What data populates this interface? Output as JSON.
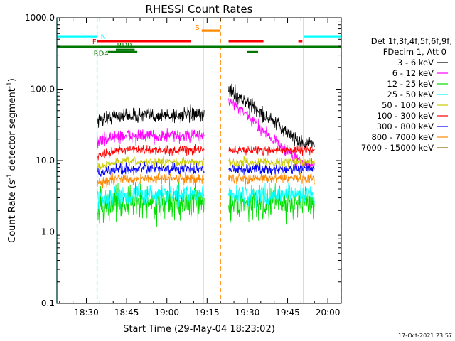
{
  "chart_data": {
    "type": "line",
    "title": "RHESSI Count Rates",
    "xlabel": "Start Time (29-May-04 18:23:02)",
    "ylabel": "Count Rate (s",
    "ylabel_sup1": "-1",
    "ylabel_mid": " detector segment",
    "ylabel_sup2": "-1",
    "ylabel_end": ")",
    "footer": "17-Oct-2021 23:57",
    "xlim_minutes": [
      -4,
      102
    ],
    "ylim": [
      0.1,
      1000
    ],
    "yscale": "log",
    "x_ticks": [
      {
        "t": 7,
        "label": "18:30"
      },
      {
        "t": 22,
        "label": "18:45"
      },
      {
        "t": 37,
        "label": "19:00"
      },
      {
        "t": 52,
        "label": "19:15"
      },
      {
        "t": 67,
        "label": "19:30"
      },
      {
        "t": 82,
        "label": "19:45"
      },
      {
        "t": 97,
        "label": "20:00"
      }
    ],
    "y_ticks": [
      {
        "v": 1000,
        "label": "1000.0"
      },
      {
        "v": 100,
        "label": "100.0"
      },
      {
        "v": 10,
        "label": "10.0"
      },
      {
        "v": 1,
        "label": "1.0"
      },
      {
        "v": 0.1,
        "label": "0.1"
      }
    ],
    "legend_header": [
      "Det 1f,3f,4f,5f,6f,9f,",
      "FDecim 1, Att 0"
    ],
    "series": [
      {
        "name": "3 - 6 keV",
        "color": "#000000",
        "level": 43,
        "jitter": 0.1,
        "decay_start": 100
      },
      {
        "name": "6 - 12 keV",
        "color": "#ff00ff",
        "level": 22,
        "jitter": 0.09,
        "decay_start": 70
      },
      {
        "name": "12 - 25 keV",
        "color": "#00dd00",
        "level": 2.6,
        "jitter": 0.22,
        "decay_start": 0
      },
      {
        "name": "25 - 50 keV",
        "color": "#00ffff",
        "level": 3.3,
        "jitter": 0.13,
        "decay_start": 0
      },
      {
        "name": "50 - 100 keV",
        "color": "#cccc00",
        "level": 9.5,
        "jitter": 0.06,
        "decay_start": 0
      },
      {
        "name": "100 - 300 keV",
        "color": "#ff0000",
        "level": 14,
        "jitter": 0.06,
        "decay_start": 0
      },
      {
        "name": "300 - 800 keV",
        "color": "#0000ff",
        "level": 7.6,
        "jitter": 0.07,
        "decay_start": 0
      },
      {
        "name": "800 - 7000 keV",
        "color": "#ff8800",
        "level": 5.6,
        "jitter": 0.07,
        "decay_start": 0
      },
      {
        "name": "7000 - 15000 keV",
        "color": "#886600",
        "level": 0,
        "jitter": 0,
        "decay_start": 0
      }
    ],
    "data_segments": [
      [
        11,
        51
      ],
      [
        60,
        92
      ]
    ],
    "flag_bars": [
      {
        "label": "N",
        "color": "#00ffff",
        "level": 550,
        "spans": [
          [
            -4,
            11
          ],
          [
            88,
            103
          ]
        ]
      },
      {
        "label": "S",
        "color": "#ff8800",
        "level": 660,
        "spans": [
          [
            50,
            57
          ]
        ]
      },
      {
        "label": "F",
        "color": "#ff0000",
        "level": 470,
        "spans": [
          [
            11,
            46
          ],
          [
            60,
            73
          ],
          [
            86,
            87.5
          ]
        ]
      },
      {
        "label": "",
        "color": "#007700",
        "level": 390,
        "spans": [
          [
            -4,
            103
          ]
        ]
      },
      {
        "label": "RD0",
        "color": "#007700",
        "level": 355,
        "spans": [
          [
            18,
            25
          ]
        ]
      },
      {
        "label": "RD4",
        "color": "#007700",
        "level": 330,
        "spans": [
          [
            15,
            26
          ],
          [
            67,
            71
          ]
        ]
      }
    ],
    "vertical_lines": [
      {
        "t": -4,
        "color": "#00ffff",
        "style": "solid"
      },
      {
        "t": 11,
        "color": "#00ffff",
        "style": "dashed"
      },
      {
        "t": 50.5,
        "color": "#ff8800",
        "style": "solid"
      },
      {
        "t": 57,
        "color": "#ff8800",
        "style": "dashed"
      },
      {
        "t": 88,
        "color": "#00ffff",
        "style": "solid"
      },
      {
        "t": 102,
        "color": "#00ffff",
        "style": "dashed"
      }
    ]
  }
}
